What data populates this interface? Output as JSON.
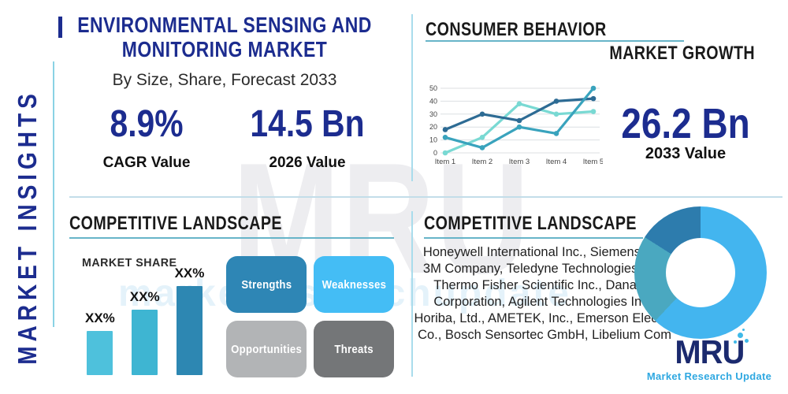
{
  "sidebar": {
    "vertical_label": "MARKET INSIGHTS"
  },
  "header": {
    "title": "ENVIRONMENTAL SENSING AND MONITORING MARKET",
    "subtitle": "By Size, Share, Forecast 2033"
  },
  "stats": {
    "cagr": {
      "value": "8.9%",
      "label": "CAGR Value"
    },
    "base_year": {
      "value": "14.5 Bn",
      "label": "2026 Value"
    },
    "forecast_year": {
      "value": "26.2 Bn",
      "label": "2033 Value"
    }
  },
  "sections": {
    "consumer_behavior": {
      "title": "CONSUMER BEHAVIOR",
      "subtitle": "MARKET GROWTH"
    },
    "competitive_left": {
      "title": "COMPETITIVE LANDSCAPE",
      "chart_label": "MARKET SHARE"
    },
    "competitive_right": {
      "title": "COMPETITIVE LANDSCAPE",
      "companies": "Honeywell International Inc., Siemens AG, 3M Company, Teledyne Technologies Inc., Thermo Fisher Scientific Inc., Danaher Corporation, Agilent Technologies Inc., Horiba, Ltd., AMETEK, Inc., Emerson Electric Co., Bosch Sensortec GmbH, Libelium Com"
    }
  },
  "swot": [
    {
      "label": "Strengths",
      "color": "#2e86b5"
    },
    {
      "label": "Weaknesses",
      "color": "#44bdf5"
    },
    {
      "label": "Opportunities",
      "color": "#b2b4b6"
    },
    {
      "label": "Threats",
      "color": "#747678"
    }
  ],
  "logo": {
    "name": "MRU",
    "tagline": "Market Research Update"
  },
  "watermark": {
    "big_text": "MRU",
    "url_text": "marketresearchupdate"
  },
  "colors": {
    "navy": "#1c2c8f",
    "heading": "#1a1a1a",
    "underline_teal": "#67b4c8",
    "divider_blue": "#a9dcec"
  },
  "chart_data": [
    {
      "type": "line",
      "title": "",
      "x": [
        "Item 1",
        "Item 2",
        "Item 3",
        "Item 4",
        "Item 5"
      ],
      "series": [
        {
          "name": "dark-blue-series",
          "color": "#2d6b94",
          "values": [
            18,
            30,
            25,
            40,
            42
          ]
        },
        {
          "name": "teal-series",
          "color": "#39a3bd",
          "values": [
            12,
            4,
            20,
            15,
            50
          ]
        },
        {
          "name": "light-cyan-series",
          "color": "#79d9d3",
          "values": [
            0,
            12,
            38,
            30,
            32
          ]
        }
      ],
      "ylim": [
        0,
        50
      ],
      "yticks": [
        0,
        10,
        20,
        30,
        40,
        50
      ],
      "grid": true,
      "legend": "none"
    },
    {
      "type": "bar",
      "title": "MARKET SHARE",
      "bar_labels": [
        "XX%",
        "XX%",
        "XX%"
      ],
      "relative_heights": [
        56,
        83,
        113
      ],
      "colors": [
        "#4ec1dc",
        "#3eb5d2",
        "#2d87b2"
      ]
    },
    {
      "type": "pie",
      "donut": true,
      "slices": [
        {
          "name": "primary-share",
          "color": "#43b5ef",
          "pct": 62
        },
        {
          "name": "secondary-share",
          "color": "#4aa8c0",
          "pct": 22
        },
        {
          "name": "tertiary-share",
          "color": "#2d7cad",
          "pct": 16
        }
      ]
    }
  ]
}
